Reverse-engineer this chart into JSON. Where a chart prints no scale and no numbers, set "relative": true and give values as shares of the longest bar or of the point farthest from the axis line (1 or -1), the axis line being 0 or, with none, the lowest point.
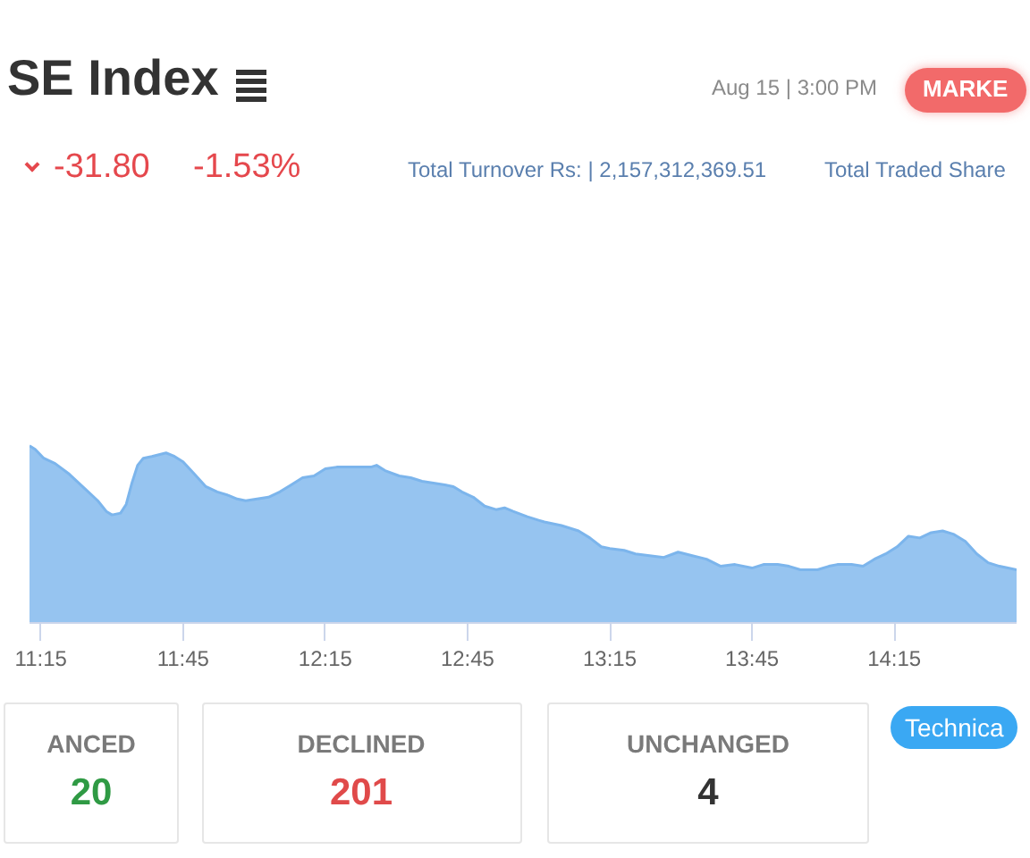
{
  "chart_data": {
    "type": "area",
    "title": "SE Index",
    "subtitle": "Aug 15 | 3:00 PM",
    "annotations": [
      "MARKE",
      "-31.80",
      "-1.53%",
      "Total Turnover Rs: | 2,157,312,369.51",
      "Total Traded Share",
      "ANCED",
      "20",
      "DECLINED",
      "201",
      "UNCHANGED",
      "4",
      "Technica"
    ],
    "relative": true,
    "xlim": [
      11.21,
      14.68
    ],
    "xticks": [
      {
        "value": 11.25,
        "label": "11:15"
      },
      {
        "value": 11.75,
        "label": "11:45"
      },
      {
        "value": 12.25,
        "label": "12:15"
      },
      {
        "value": 12.75,
        "label": "12:45"
      },
      {
        "value": 13.25,
        "label": "13:15"
      },
      {
        "value": 13.75,
        "label": "13:45"
      },
      {
        "value": 14.25,
        "label": "14:15"
      }
    ],
    "x": [
      11.21,
      11.23,
      11.26,
      11.3,
      11.35,
      11.41,
      11.45,
      11.48,
      11.5,
      11.53,
      11.55,
      11.57,
      11.59,
      11.61,
      11.64,
      11.69,
      11.72,
      11.75,
      11.79,
      11.83,
      11.87,
      11.91,
      11.94,
      11.97,
      12.01,
      12.05,
      12.09,
      12.13,
      12.17,
      12.21,
      12.25,
      12.29,
      12.33,
      12.37,
      12.41,
      12.43,
      12.46,
      12.51,
      12.55,
      12.59,
      12.63,
      12.67,
      12.7,
      12.73,
      12.77,
      12.81,
      12.85,
      12.88,
      12.91,
      12.96,
      13.0,
      13.02,
      13.08,
      13.14,
      13.18,
      13.22,
      13.25,
      13.3,
      13.34,
      13.39,
      13.44,
      13.49,
      13.54,
      13.59,
      13.64,
      13.69,
      13.75,
      13.79,
      13.84,
      13.88,
      13.92,
      13.98,
      14.02,
      14.05,
      14.1,
      14.14,
      14.18,
      14.22,
      14.26,
      14.3,
      14.34,
      14.38,
      14.42,
      14.46,
      14.5,
      14.54,
      14.58,
      14.62,
      14.65,
      14.68
    ],
    "series": [
      {
        "color": "#7cb5ec",
        "values": [
          1.0,
          0.98,
          0.93,
          0.9,
          0.84,
          0.75,
          0.69,
          0.63,
          0.61,
          0.62,
          0.67,
          0.79,
          0.89,
          0.93,
          0.94,
          0.96,
          0.94,
          0.91,
          0.84,
          0.77,
          0.74,
          0.72,
          0.7,
          0.69,
          0.7,
          0.71,
          0.74,
          0.78,
          0.82,
          0.83,
          0.87,
          0.88,
          0.88,
          0.88,
          0.88,
          0.89,
          0.86,
          0.83,
          0.82,
          0.8,
          0.79,
          0.78,
          0.77,
          0.74,
          0.71,
          0.66,
          0.64,
          0.65,
          0.63,
          0.6,
          0.58,
          0.57,
          0.55,
          0.52,
          0.48,
          0.43,
          0.42,
          0.41,
          0.39,
          0.38,
          0.37,
          0.4,
          0.38,
          0.36,
          0.32,
          0.33,
          0.31,
          0.33,
          0.33,
          0.32,
          0.3,
          0.3,
          0.32,
          0.33,
          0.33,
          0.32,
          0.36,
          0.39,
          0.43,
          0.49,
          0.48,
          0.51,
          0.52,
          0.5,
          0.46,
          0.39,
          0.34,
          0.32,
          0.31,
          0.3
        ]
      }
    ]
  }
}
